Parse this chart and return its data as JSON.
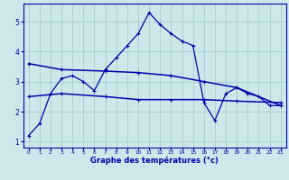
{
  "xlabel": "Graphe des températures (°c)",
  "bg_color": "#cce8ea",
  "grid_color": "#aacccc",
  "line_color": "#0000aa",
  "xlim": [
    -0.5,
    23.5
  ],
  "ylim": [
    0.8,
    5.6
  ],
  "yticks": [
    1,
    2,
    3,
    4,
    5
  ],
  "xticks": [
    0,
    1,
    2,
    3,
    4,
    5,
    6,
    7,
    8,
    9,
    10,
    11,
    12,
    13,
    14,
    15,
    16,
    17,
    18,
    19,
    20,
    21,
    22,
    23
  ],
  "line1_x": [
    0,
    1,
    2,
    3,
    4,
    5,
    6,
    7,
    8,
    9,
    10,
    11,
    12,
    13,
    14,
    15,
    16,
    17,
    18,
    19,
    20,
    21,
    22,
    23
  ],
  "line1_y": [
    1.2,
    1.6,
    2.6,
    3.1,
    3.2,
    3.0,
    2.7,
    3.4,
    3.8,
    4.2,
    4.6,
    5.3,
    4.9,
    4.6,
    4.35,
    4.2,
    2.3,
    1.7,
    2.6,
    2.8,
    2.6,
    2.5,
    2.2,
    2.2
  ],
  "line2_x": [
    0,
    3,
    7,
    10,
    13,
    16,
    19,
    23
  ],
  "line2_y": [
    3.6,
    3.4,
    3.35,
    3.3,
    3.2,
    3.0,
    2.8,
    2.2
  ],
  "line3_x": [
    0,
    3,
    7,
    10,
    13,
    16,
    19,
    23
  ],
  "line3_y": [
    2.5,
    2.6,
    2.5,
    2.4,
    2.4,
    2.4,
    2.35,
    2.3
  ]
}
